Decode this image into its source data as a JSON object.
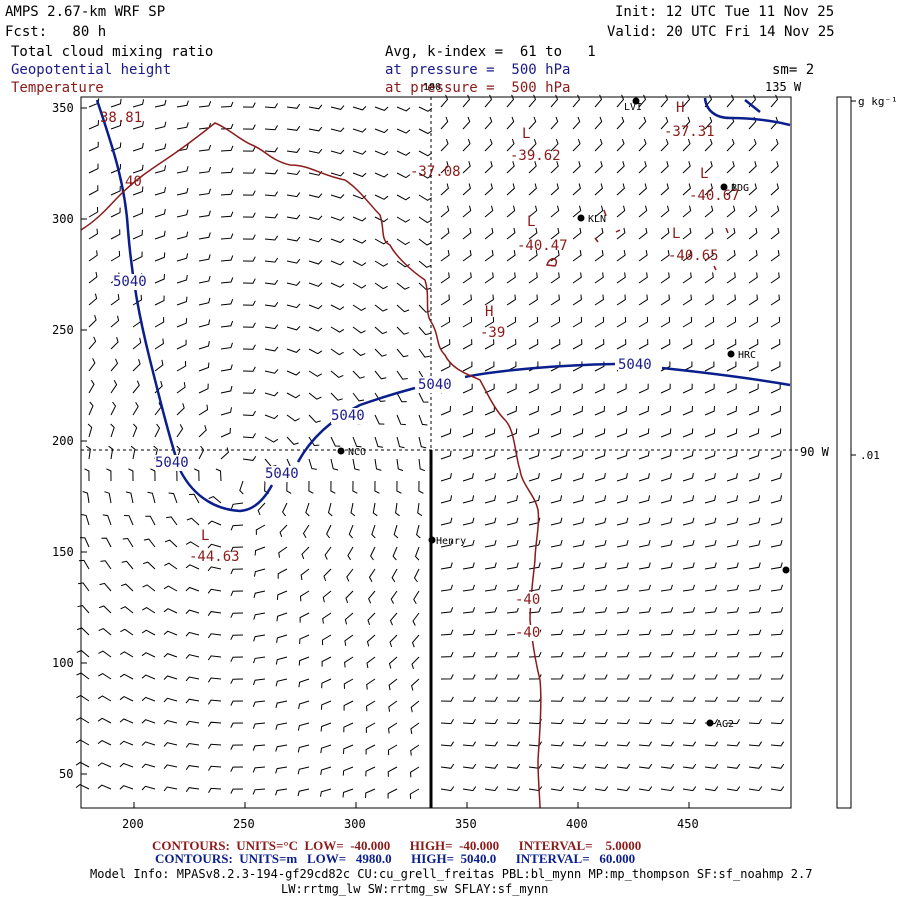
{
  "header": {
    "model": "AMPS 2.67-km WRF SP",
    "forecast": "Fcst:   80 h",
    "init": "Init: 12 UTC Tue 11 Nov 25",
    "valid": "Valid: 20 UTC Fri 14 Nov 25",
    "field1": "Total cloud mixing ratio",
    "field2": "Geopotential height",
    "field3": "Temperature",
    "avg_k": "Avg, k-index =  61 to   1",
    "pressure1": "at pressure =  500 hPa",
    "pressure2": "at pressure =  500 hPa",
    "sm": "sm= 2"
  },
  "map": {
    "lon_180": "180",
    "lon_135w": "135 W",
    "lon_90w": "90 W",
    "y_ticks": [
      "350",
      "300",
      "250",
      "200",
      "150",
      "100",
      "50"
    ],
    "x_ticks": [
      "200",
      "250",
      "300",
      "350",
      "400",
      "450"
    ],
    "stations": [
      {
        "id": "LVI",
        "label": "LVI"
      },
      {
        "id": "BDG",
        "label": "BDG"
      },
      {
        "id": "KLN",
        "label": "KLN"
      },
      {
        "id": "HRC",
        "label": "HRC"
      },
      {
        "id": "NCO",
        "label": "NCO"
      },
      {
        "id": "Henry",
        "label": "Henry"
      },
      {
        "id": "AG2",
        "label": "AG2"
      }
    ],
    "height_labels": [
      "5040",
      "5040",
      "5040",
      "5040",
      "5040",
      "5040"
    ],
    "temp_labels": [
      "38.81",
      "40",
      "-37.08",
      "L",
      "-39.62",
      "L",
      "-40.47",
      "L",
      "-40.67",
      "L",
      "-40.65",
      "H",
      "-37.31",
      "H",
      "-39",
      "L",
      "-44.63",
      "-40",
      "-40"
    ]
  },
  "colorbar": {
    "units": "g kg⁻¹",
    "tick": ".01"
  },
  "footer": {
    "temp_contours": "CONTOURS:  UNITS=°C  LOW=  -40.000      HIGH=  -40.000      INTERVAL=    5.0000",
    "height_contours": "CONTOURS:  UNITS=m   LOW=   4980.0      HIGH=  5040.0      INTERVAL=   60.000",
    "model_info": "Model Info: MPASv8.2.3-194-gf29cd82c CU:cu_grell_freitas PBL:bl_mynn MP:mp_thompson SF:sf_noahmp 2.7",
    "model_info2": "LW:rrtmg_lw SW:rrtmg_sw SFLAY:sf_mynn"
  },
  "colors": {
    "height": "#0a1e8c",
    "temp": "#8b1a1a",
    "frame": "#000000"
  }
}
